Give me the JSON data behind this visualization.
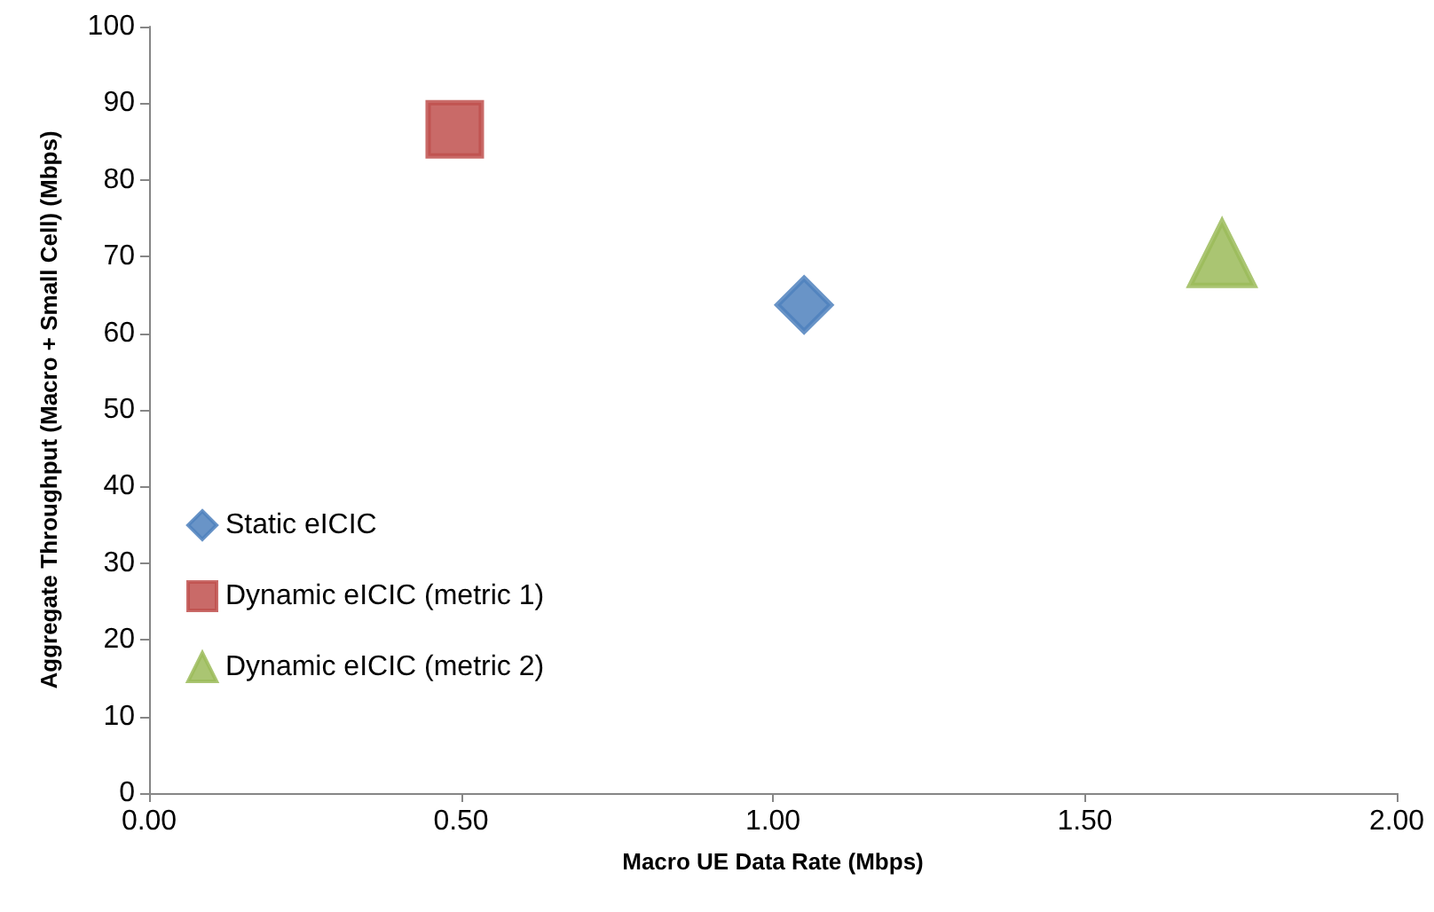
{
  "chart_data": {
    "type": "scatter",
    "xlabel": "Macro UE Data Rate (Mbps)",
    "ylabel": "Aggregate Throughput (Macro + Small Cell) (Mbps)",
    "series": [
      {
        "name": "Static eICIC",
        "color": "#4f81bd",
        "marker": "diamond",
        "x": [
          1.05
        ],
        "values": [
          63.7
        ]
      },
      {
        "name": "Dynamic eICIC (metric 1)",
        "color": "#c0504d",
        "marker": "square",
        "x": [
          0.49
        ],
        "values": [
          86.6
        ]
      },
      {
        "name": "Dynamic eICIC (metric 2)",
        "color": "#9bbb59",
        "marker": "triangle",
        "x": [
          1.72
        ],
        "values": [
          70.4
        ]
      }
    ],
    "xlim": [
      0,
      2
    ],
    "xticks": [
      {
        "value": 0,
        "label": "0.00"
      },
      {
        "value": 0.5,
        "label": "0.50"
      },
      {
        "value": 1,
        "label": "1.00"
      },
      {
        "value": 1.5,
        "label": "1.50"
      },
      {
        "value": 2,
        "label": "2.00"
      }
    ],
    "ylim": [
      0,
      100
    ],
    "yticks": [
      0,
      10,
      20,
      30,
      40,
      50,
      60,
      70,
      80,
      90,
      100
    ],
    "grid": false,
    "legend": "bottom left"
  }
}
